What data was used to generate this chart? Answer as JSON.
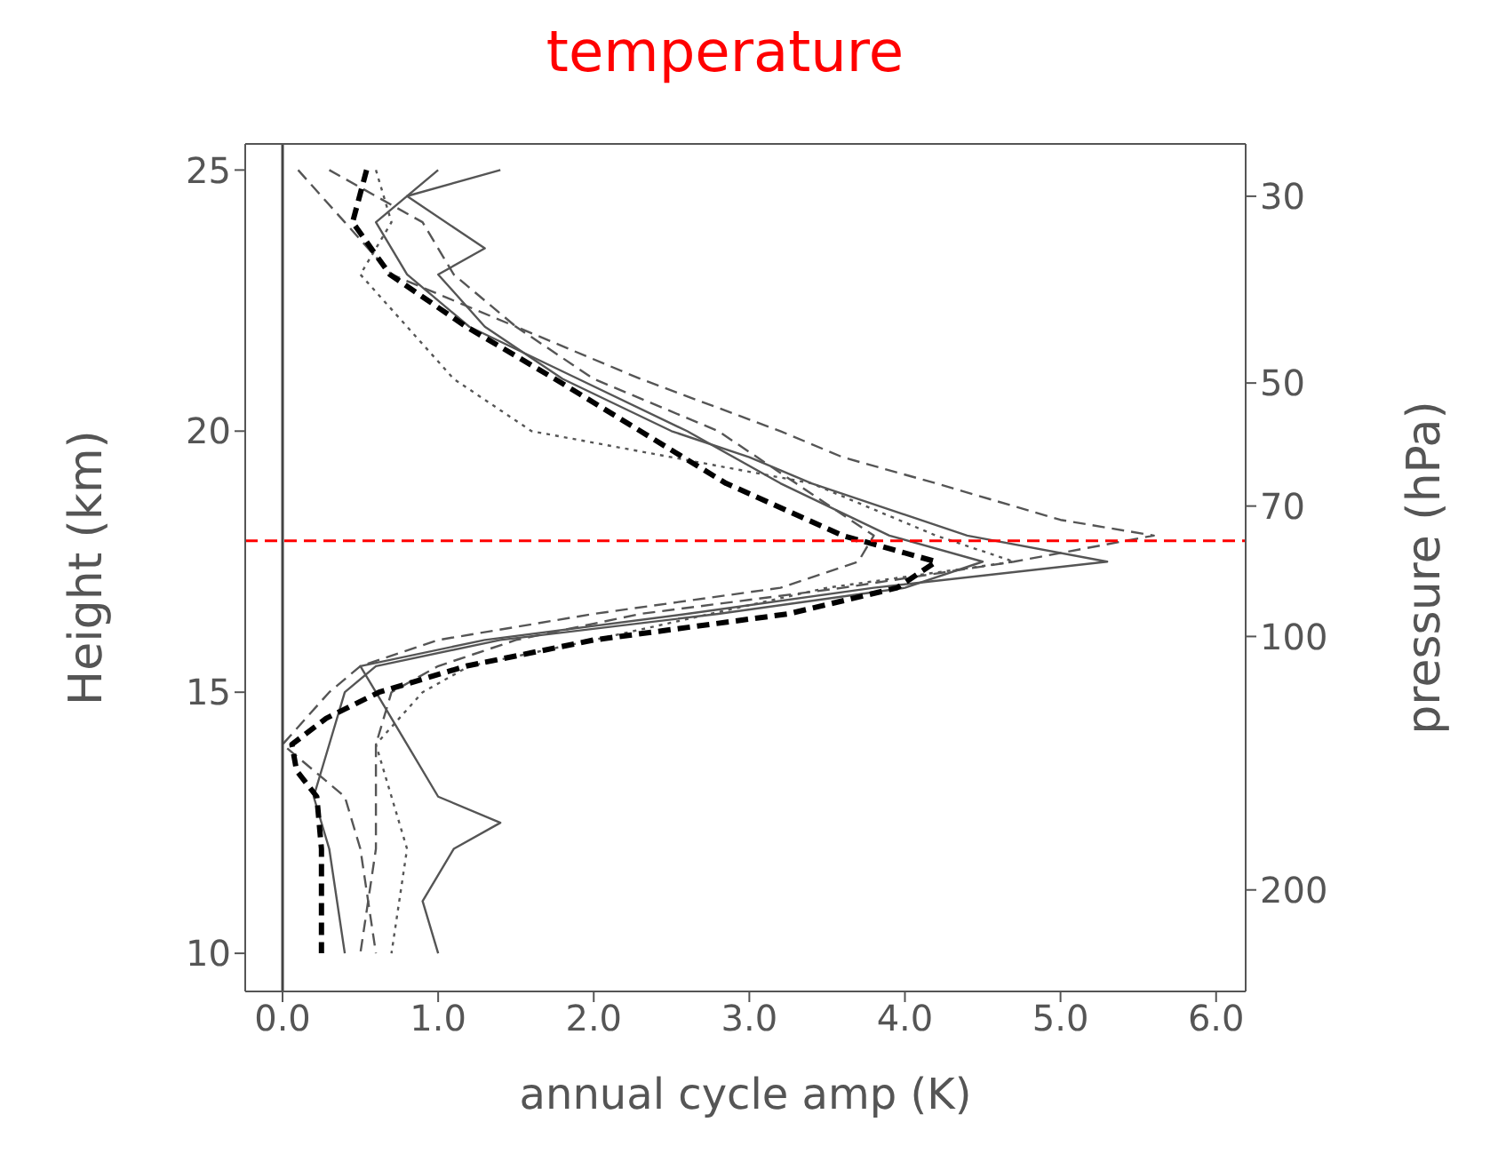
{
  "chart_data": {
    "type": "line",
    "title": "temperature",
    "xlabel": "annual cycle amp (K)",
    "ylabel": "Height (km)",
    "y2label": "pressure (hPa)",
    "xlim": [
      -0.24,
      6.19
    ],
    "xticks": [
      {
        "value": 0,
        "label": "0.0"
      },
      {
        "value": 1,
        "label": "1.0"
      },
      {
        "value": 2,
        "label": "2.0"
      },
      {
        "value": 3,
        "label": "3.0"
      },
      {
        "value": 4,
        "label": "4.0"
      },
      {
        "value": 5,
        "label": "5.0"
      },
      {
        "value": 6,
        "label": "6.0"
      }
    ],
    "ylim": [
      9.27,
      25.5
    ],
    "yticks": [
      10,
      15,
      20,
      25
    ],
    "y2lim": [
      264,
      26
    ],
    "y2ticks": [
      30,
      50,
      70,
      100,
      200
    ],
    "log": "y2",
    "marker": "none",
    "ref_lines": [
      {
        "axis": "x",
        "value": 0,
        "color": "#444444",
        "line_style": "solid"
      },
      {
        "axis": "y",
        "value": 17.9,
        "color": "#ff0000",
        "line_style": "dashed"
      }
    ],
    "series": [
      {
        "color": "#555555",
        "line_style": "solid",
        "x": [
          1.4,
          0.8,
          1.3,
          1.0,
          1.3,
          1.8,
          2.5,
          3.0,
          3.4,
          4.4,
          5.3,
          3.8,
          2.6,
          1.3,
          0.5,
          0.6,
          0.8,
          1.0,
          1.4,
          1.1,
          0.9,
          1.0
        ],
        "values": [
          25,
          24.5,
          23.5,
          23,
          22,
          21,
          20,
          19.5,
          19,
          18,
          17.5,
          17,
          16.5,
          16,
          15.5,
          15,
          14,
          13,
          12.5,
          12,
          11,
          10
        ]
      },
      {
        "color": "#555555",
        "line_style": "dashed",
        "x": [
          0.3,
          0.9,
          1.1,
          1.5,
          2.3,
          3.2,
          3.6,
          4.2,
          5.0,
          5.6,
          4.7,
          3.6,
          2.3,
          1.5,
          1.0,
          0.7,
          0.6,
          0.6,
          0.5
        ],
        "values": [
          25,
          24,
          23,
          22,
          21,
          20,
          19.5,
          19,
          18.3,
          18,
          17.5,
          17,
          16.5,
          16,
          15.5,
          15,
          14,
          12,
          10
        ]
      },
      {
        "color": "#555555",
        "line_style": "dotted",
        "x": [
          0.6,
          0.7,
          0.5,
          0.8,
          1.1,
          1.6,
          2.5,
          3.4,
          4.2,
          4.7,
          3.5,
          2.0,
          1.2,
          0.9,
          0.6,
          0.7,
          0.8,
          0.7
        ],
        "values": [
          25,
          24,
          23,
          22,
          21,
          20,
          19.5,
          19,
          18,
          17.5,
          17,
          16,
          15.5,
          15,
          14,
          13,
          12,
          10
        ]
      },
      {
        "color": "#555555",
        "line_style": "dashed",
        "x": [
          0.1,
          0.4,
          0.7,
          1.5,
          2.0,
          2.8,
          3.3,
          3.8,
          3.7,
          3.2,
          2.0,
          1.0,
          0.5,
          0.3,
          0.0,
          0.4,
          0.5,
          0.6
        ],
        "values": [
          25,
          24,
          23,
          22,
          21,
          20,
          19,
          18,
          17.5,
          17,
          16.5,
          16,
          15.5,
          15,
          14,
          13,
          12,
          10
        ]
      },
      {
        "color": "#555555",
        "line_style": "solid",
        "x": [
          1.0,
          0.6,
          0.8,
          1.2,
          1.9,
          2.6,
          3.2,
          3.9,
          4.5,
          4.0,
          2.8,
          1.4,
          0.6,
          0.4,
          0.3,
          0.2,
          0.3,
          0.4
        ],
        "values": [
          25,
          24,
          23,
          22,
          21,
          20,
          19,
          18,
          17.5,
          17,
          16.5,
          16,
          15.5,
          15,
          14,
          13,
          12,
          10
        ]
      },
      {
        "color": "#000000",
        "line_style": "dashed",
        "x": [
          0.54,
          0.45,
          0.69,
          1.18,
          1.75,
          2.3,
          2.85,
          3.6,
          4.2,
          3.95,
          3.25,
          2.0,
          1.18,
          0.62,
          0.28,
          0.06,
          0.09,
          0.22,
          0.25,
          0.25
        ],
        "values": [
          25,
          24,
          23,
          22,
          21,
          20,
          19,
          18,
          17.5,
          17,
          16.5,
          16,
          15.5,
          15,
          14.5,
          14,
          13.5,
          13,
          12,
          10
        ]
      }
    ]
  }
}
